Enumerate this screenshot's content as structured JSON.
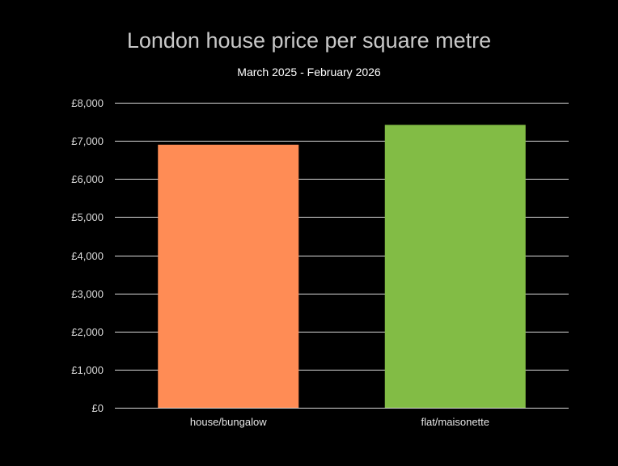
{
  "chart_data": {
    "type": "bar",
    "title": "London house price per square metre",
    "subtitle": "March 2025 - February 2026",
    "xlabel": "",
    "ylabel": "",
    "categories": [
      "house/bungalow",
      "flat/maisonette"
    ],
    "values": [
      6900,
      7420
    ],
    "bar_colors": [
      "#ff8c55",
      "#82bc45"
    ],
    "ylim": [
      0,
      8000
    ],
    "yticks": [
      0,
      1000,
      2000,
      3000,
      4000,
      5000,
      6000,
      7000,
      8000
    ],
    "ytick_labels": [
      "£0",
      "£1,000",
      "£2,000",
      "£3,000",
      "£4,000",
      "£5,000",
      "£6,000",
      "£7,000",
      "£8,000"
    ],
    "grid": true,
    "legend": "none",
    "background": "#000000"
  }
}
